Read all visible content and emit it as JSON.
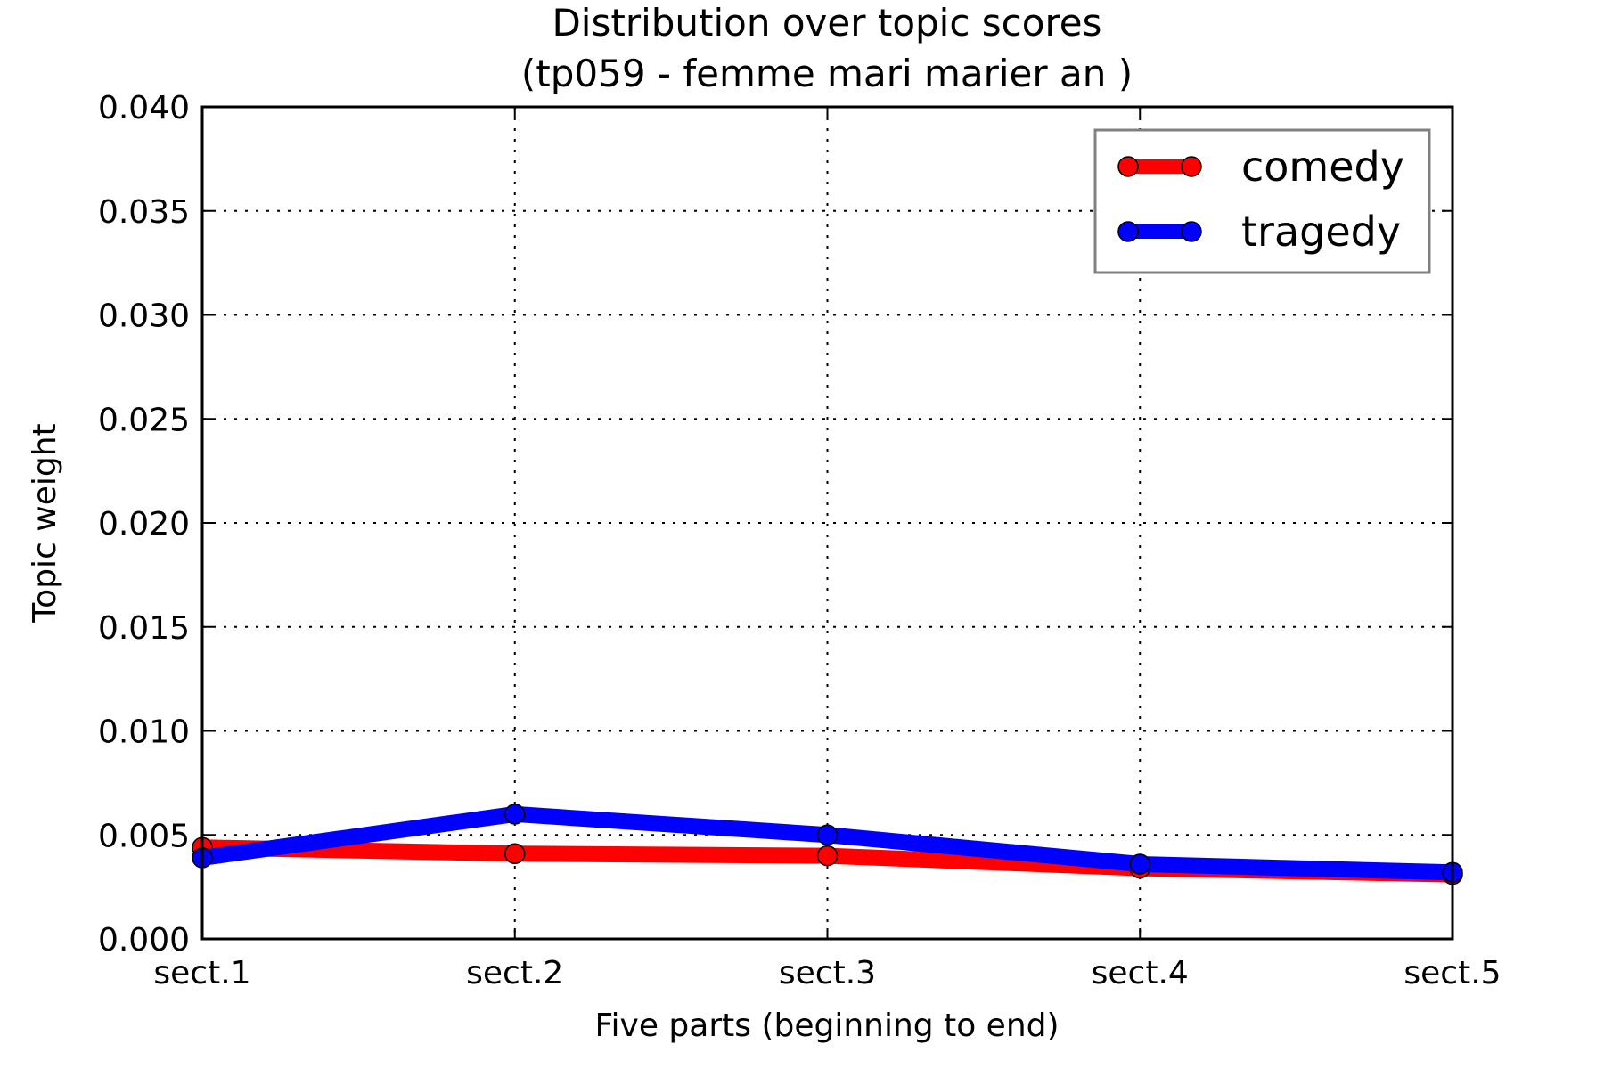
{
  "chart_data": {
    "type": "line",
    "title": "Distribution over topic scores",
    "subtitle": "(tp059 - femme mari marier an )",
    "xlabel": "Five parts (beginning to end)",
    "ylabel": "Topic weight",
    "categories": [
      "sect.1",
      "sect.2",
      "sect.3",
      "sect.4",
      "sect.5"
    ],
    "ylim": [
      0,
      0.04
    ],
    "yticks": [
      "0.000",
      "0.005",
      "0.010",
      "0.015",
      "0.020",
      "0.025",
      "0.030",
      "0.035",
      "0.040"
    ],
    "grid": true,
    "legend_position": "top-right",
    "series": [
      {
        "name": "comedy",
        "color": "#ff0000",
        "values": [
          0.0044,
          0.0041,
          0.004,
          0.0034,
          0.0031
        ]
      },
      {
        "name": "tragedy",
        "color": "#0000ff",
        "values": [
          0.0039,
          0.006,
          0.005,
          0.0036,
          0.0032
        ]
      }
    ]
  }
}
